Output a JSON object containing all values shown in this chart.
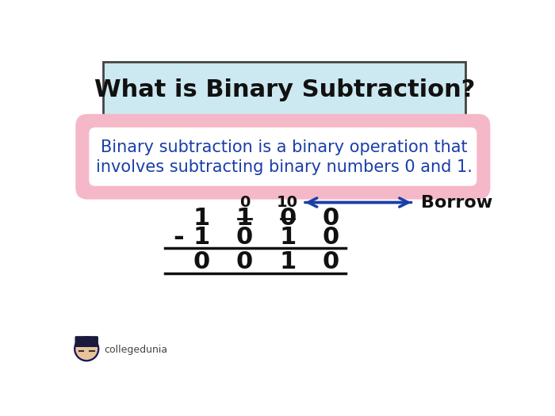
{
  "title": "What is Binary Subtraction?",
  "title_box_color": "#cce8f0",
  "title_box_edge": "#444444",
  "title_fontsize": 22,
  "desc_text_line1": "Binary subtraction is a binary operation that",
  "desc_text_line2": "involves subtracting binary numbers 0 and 1.",
  "desc_text_color": "#1a3ea8",
  "desc_fontsize": 15,
  "pill_fill": "#f5b8c8",
  "pill_edge": "#e07090",
  "borrow_label": "Borrow",
  "borrow_color": "#1a3ea8",
  "borrow_fontsize": 16,
  "row_borrow_col2": "0",
  "row_borrow_col3": "10",
  "row1_col1": "1",
  "row1_col2_struck": "1",
  "row1_col3_struck": "0",
  "row1_col4": "0",
  "row2_minus": "-",
  "row2_col1": "1",
  "row2_col2": "0",
  "row2_col3": "1",
  "row2_col4": "0",
  "row3_col1": "0",
  "row3_col2": "0",
  "row3_col3": "1",
  "row3_col4": "0",
  "calc_fontsize": 22,
  "calc_color": "#111111",
  "bg_color": "#ffffff",
  "logo_text": "collegedunia",
  "logo_fontsize": 9
}
